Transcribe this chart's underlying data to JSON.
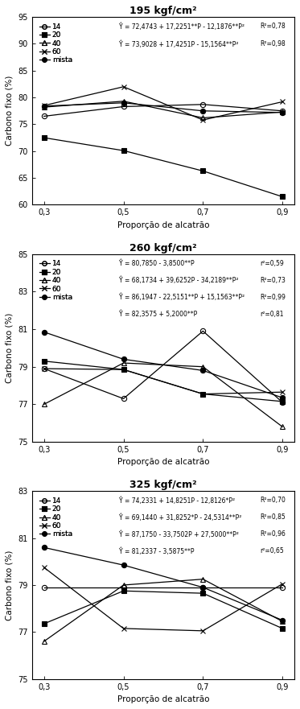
{
  "x": [
    0.3,
    0.5,
    0.7,
    0.9
  ],
  "plots": [
    {
      "title": "195 kgf/cm²",
      "ylim": [
        60,
        95
      ],
      "yticks": [
        60,
        65,
        70,
        75,
        80,
        85,
        90,
        95
      ],
      "series": {
        "14": [
          76.5,
          78.3,
          78.7,
          77.5
        ],
        "20": [
          72.5,
          70.1,
          66.3,
          61.5
        ],
        "40": [
          78.2,
          79.3,
          76.2,
          77.3
        ],
        "60": [
          78.5,
          82.0,
          75.8,
          79.2
        ],
        "mista": [
          78.4,
          79.0,
          77.5,
          77.2
        ]
      },
      "eq_lines": [
        [
          "Ŷ = 72,4743 + 17,2251**P - 12,1876**P²",
          "R²=0,78"
        ],
        [
          "Ŷ = 73,9028 + 17,4251P - 15,1564**P²",
          "R²=0,98"
        ]
      ],
      "eq_series": [
        "14",
        "20"
      ]
    },
    {
      "title": "260 kgf/cm²",
      "ylim": [
        75,
        85
      ],
      "yticks": [
        75,
        77,
        79,
        81,
        83,
        85
      ],
      "series": {
        "14": [
          78.9,
          77.3,
          80.9,
          77.1
        ],
        "20": [
          79.3,
          78.85,
          77.55,
          77.15
        ],
        "40": [
          77.0,
          79.2,
          79.0,
          75.8
        ],
        "60": [
          78.9,
          78.85,
          77.55,
          77.65
        ],
        "mista": [
          80.85,
          79.4,
          78.8,
          77.35
        ]
      },
      "eq_lines": [
        [
          "Ŷ = 80,7850 - 3,8500**P",
          "r²=0,59"
        ],
        [
          "Ŷ = 68,1734 + 39,6252P - 34,2189**P²",
          "R²=0,73"
        ],
        [
          "Ŷ = 86,1947 - 22,5151**P + 15,1563**P²",
          "R²=0,99"
        ],
        [
          "Ŷ = 82,3575 + 5,2000**P",
          "r²=0,81"
        ]
      ],
      "eq_series": [
        "14",
        "40",
        "60",
        "mista"
      ]
    },
    {
      "title": "325 kgf/cm²",
      "ylim": [
        75,
        83
      ],
      "yticks": [
        75,
        77,
        79,
        81,
        83
      ],
      "series": {
        "14": [
          78.9,
          78.9,
          78.9,
          78.9
        ],
        "20": [
          77.35,
          78.75,
          78.65,
          77.15
        ],
        "40": [
          76.6,
          79.0,
          79.25,
          77.45
        ],
        "60": [
          79.75,
          77.15,
          77.05,
          79.05
        ],
        "mista": [
          80.6,
          79.85,
          78.9,
          77.5
        ]
      },
      "eq_lines": [
        [
          "Ŷ = 74,2331 + 14,8251P - 12,8126*P²",
          "R²=0,70"
        ],
        [
          "Ŷ = 69,1440 + 31,8252*P - 24,5314**P²",
          "R²=0,85"
        ],
        [
          "Ŷ = 87,1750 - 33,7502P + 27,5000**P²",
          "R²=0,96"
        ],
        [
          "Ŷ = 81,2337 - 3,5875**P",
          "r²=0,65"
        ]
      ],
      "eq_series": [
        "20",
        "40",
        "60",
        "mista"
      ]
    }
  ],
  "series_keys": [
    "14",
    "20",
    "40",
    "60",
    "mista"
  ],
  "markers": [
    "o",
    "s",
    "^",
    "x",
    "o"
  ],
  "mfc": [
    "none",
    "#000000",
    "none",
    "#000000",
    "#000000"
  ],
  "mec": [
    "#000000",
    "#000000",
    "#000000",
    "#000000",
    "#000000"
  ],
  "line_color": [
    "#000000",
    "#000000",
    "#000000",
    "#000000",
    "#000000"
  ],
  "xlabel": "Proporção de alcatrão",
  "ylabel": "Carbono fixo (%)"
}
